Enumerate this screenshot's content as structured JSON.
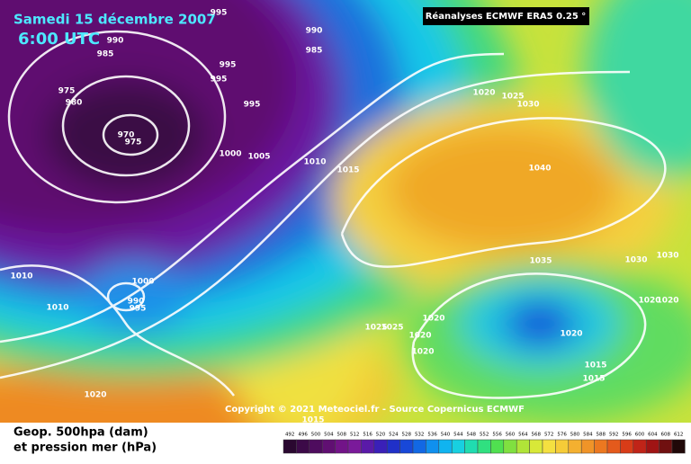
{
  "header": {
    "date": "Samedi 15 décembre 2007",
    "time": "6:00 UTC",
    "source": "Réanalyses ECMWF ERA5 0.25 °"
  },
  "copyright": "Copyright © 2021 Meteociel.fr - Source Copernicus ECMWF",
  "isobar_labels": [
    "995",
    "990",
    "985",
    "990",
    "985",
    "995",
    "995",
    "975",
    "980",
    "995",
    "970",
    "975",
    "1000",
    "1005",
    "1010",
    "1015",
    "1020",
    "1025",
    "1030",
    "1040",
    "1035",
    "1030",
    "1030",
    "1020",
    "1020",
    "1010",
    "1010",
    "1000",
    "990",
    "995",
    "1025",
    "1025",
    "1020",
    "1020",
    "1020",
    "1020",
    "1015",
    "1015",
    "1020",
    "1015"
  ],
  "legend": {
    "title": "Geop. 500hpa (dam)",
    "subtitle": "et pression mer (hPa)",
    "ticks": [
      492,
      496,
      500,
      504,
      508,
      512,
      516,
      520,
      524,
      528,
      532,
      536,
      540,
      544,
      548,
      552,
      556,
      560,
      564,
      568,
      572,
      576,
      580,
      584,
      588,
      592,
      596,
      600,
      604,
      608,
      612
    ],
    "colors": [
      "#2a0830",
      "#3c0a48",
      "#4e0c5e",
      "#600f72",
      "#721488",
      "#7a1a9a",
      "#5a1aa8",
      "#3a20b8",
      "#2030c8",
      "#1848d8",
      "#1268e4",
      "#1090ee",
      "#10b4f0",
      "#18d0e0",
      "#20dcb0",
      "#30e080",
      "#50e050",
      "#80e040",
      "#b0e438",
      "#d8e838",
      "#f4e040",
      "#f6cc38",
      "#f4b030",
      "#f09428",
      "#ec7820",
      "#e45a1c",
      "#d83c18",
      "#c02418",
      "#a01414",
      "#701010",
      "#200808"
    ]
  }
}
